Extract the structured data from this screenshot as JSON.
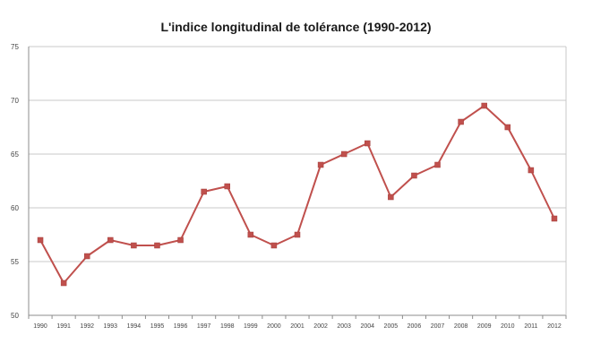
{
  "chart_data": {
    "type": "line",
    "title": "L'indice longitudinal de tolérance (1990-2012)",
    "xlabel": "",
    "ylabel": "",
    "ylim": [
      50,
      75
    ],
    "yticks": [
      "50",
      "55",
      "60",
      "65",
      "70",
      "75"
    ],
    "grid": true,
    "legend": "none",
    "categories": [
      "1990",
      "1991",
      "1992",
      "1993",
      "1994",
      "1995",
      "1996",
      "1997",
      "1998",
      "1999",
      "2000",
      "2001",
      "2002",
      "2003",
      "2004",
      "2005",
      "2006",
      "2007",
      "2008",
      "2009",
      "2010",
      "2011",
      "2012"
    ],
    "series": [
      {
        "color": "#c0504d",
        "values": [
          57,
          53,
          55.5,
          57,
          56.5,
          56.5,
          57,
          61.5,
          62,
          57.5,
          56.5,
          57.5,
          64,
          65,
          66,
          61,
          63,
          64,
          68,
          69.5,
          67.5,
          63.5,
          59
        ]
      }
    ]
  }
}
